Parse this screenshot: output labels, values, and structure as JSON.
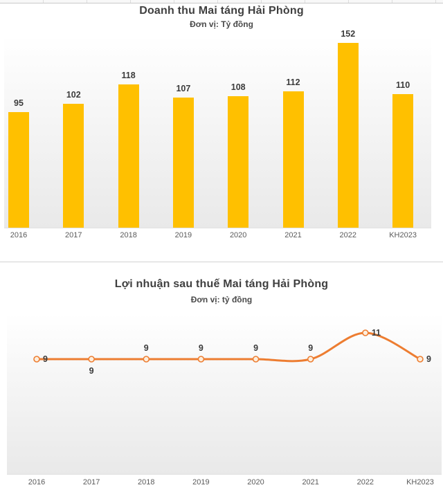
{
  "page": {
    "background": "#ffffff"
  },
  "chart_data": [
    {
      "type": "bar",
      "title": "Doanh thu Mai táng Hải Phòng",
      "subtitle": "Đơn vị: Tỷ đồng",
      "categories": [
        "2016",
        "2017",
        "2018",
        "2019",
        "2020",
        "2021",
        "2022",
        "KH2023"
      ],
      "values": [
        95,
        102,
        118,
        107,
        108,
        112,
        152,
        110
      ],
      "ylim": [
        0,
        160
      ],
      "grid": false,
      "legend": "none",
      "data_labels": true,
      "colors": {
        "bar": "#FFC000",
        "value_label": "#3b3b3b",
        "axis_label": "#5a5a5a",
        "title": "#3f3f3f"
      }
    },
    {
      "type": "line",
      "title": "Lợi nhuận sau thuế Mai táng Hải Phòng",
      "subtitle": "Đơn vị: tỷ đồng",
      "categories": [
        "2016",
        "2017",
        "2018",
        "2019",
        "2020",
        "2021",
        "2022",
        "KH2023"
      ],
      "values": [
        9,
        9,
        9,
        9,
        9,
        9,
        11,
        9
      ],
      "ylim": [
        0,
        12
      ],
      "grid": false,
      "legend": "none",
      "smooth": true,
      "data_labels": true,
      "label_positions": [
        "right",
        "below",
        "above",
        "above",
        "above",
        "above",
        "right",
        "right"
      ],
      "colors": {
        "line": "#ED7D31",
        "marker_fill": "#FDEEDC",
        "value_label": "#3b3b3b",
        "axis_label": "#5a5a5a",
        "title": "#3f3f3f"
      }
    }
  ]
}
